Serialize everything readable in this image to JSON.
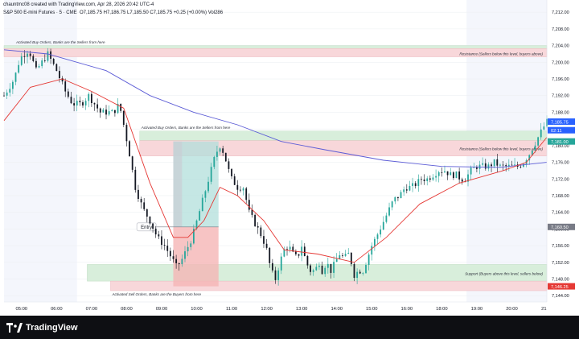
{
  "header": {
    "line1": "chauntmc08 created with TradingView.com, Apr 28, 2026 20:42 UTC-4",
    "symbol": "S&P 500 E-mini Futures · 5 · CME",
    "ohlc": "O7,185.75 H7,186.75 L7,185.50 C7,185.75 +0.25 (+0.00%) Vol286"
  },
  "footer": {
    "brand": "TradingView",
    "logo_icon": "tradingview-logo-icon"
  },
  "colors": {
    "up": "#26a69a",
    "down": "#131722",
    "ema_fast": "#e53935",
    "ema_slow": "#5c5cd6",
    "resistance_zone": "#f8d7da",
    "support_zone": "#d8eedb",
    "long_profit": "#b2dfdb",
    "stop_loss": "#f5b5b5",
    "price_label": "#2962ff",
    "red_label": "#e53935"
  },
  "chart_data": {
    "type": "candlestick",
    "x_ticks": [
      "05:00",
      "06:00",
      "07:00",
      "08:00",
      "09:00",
      "10:00",
      "11:00",
      "12:00",
      "13:00",
      "14:00",
      "15:00",
      "16:00",
      "18:00",
      "19:00",
      "20:00",
      "21"
    ],
    "y_ticks": [
      "7,212.00",
      "7,208.00",
      "7,204.00",
      "7,200.00",
      "7,196.00",
      "7,192.00",
      "7,188.00",
      "7,184.00",
      "7,180.00",
      "7,176.00",
      "7,172.00",
      "7,168.00",
      "7,164.00",
      "7,160.00",
      "7,156.00",
      "7,152.00",
      "7,148.00",
      "7,144.00"
    ],
    "ylim": [
      7142.5,
      7213
    ],
    "series_path": [
      [
        0,
        7192
      ],
      [
        7,
        7196
      ],
      [
        11,
        7201
      ],
      [
        17,
        7203
      ],
      [
        22,
        7198
      ],
      [
        26,
        7200
      ],
      [
        30,
        7202
      ],
      [
        36,
        7198
      ],
      [
        42,
        7193
      ],
      [
        47,
        7190
      ],
      [
        53,
        7190
      ],
      [
        58,
        7192
      ],
      [
        62,
        7190
      ],
      [
        66,
        7188
      ],
      [
        72,
        7188
      ],
      [
        75,
        7188
      ],
      [
        79,
        7190
      ],
      [
        82,
        7185
      ],
      [
        86,
        7178
      ],
      [
        90,
        7170
      ],
      [
        95,
        7165
      ],
      [
        100,
        7162
      ],
      [
        105,
        7158
      ],
      [
        110,
        7156
      ],
      [
        115,
        7153
      ],
      [
        118,
        7151
      ],
      [
        121,
        7152
      ],
      [
        125,
        7155
      ],
      [
        129,
        7158
      ],
      [
        133,
        7163
      ],
      [
        137,
        7168
      ],
      [
        141,
        7173
      ],
      [
        145,
        7178
      ],
      [
        148,
        7180
      ],
      [
        151,
        7178
      ],
      [
        153,
        7175
      ],
      [
        156,
        7172
      ],
      [
        160,
        7170
      ],
      [
        164,
        7170
      ],
      [
        168,
        7164
      ],
      [
        171,
        7162
      ],
      [
        174,
        7160
      ],
      [
        177,
        7158
      ],
      [
        180,
        7155
      ],
      [
        183,
        7150
      ],
      [
        186,
        7148
      ],
      [
        189,
        7152
      ],
      [
        192,
        7155
      ],
      [
        195,
        7156
      ],
      [
        198,
        7154
      ],
      [
        201,
        7153
      ],
      [
        204,
        7156
      ],
      [
        207,
        7152
      ],
      [
        210,
        7150
      ],
      [
        213,
        7150
      ],
      [
        216,
        7152
      ],
      [
        218,
        7150
      ],
      [
        221,
        7152
      ],
      [
        224,
        7150
      ],
      [
        227,
        7152
      ],
      [
        230,
        7154
      ],
      [
        233,
        7153
      ],
      [
        236,
        7154
      ],
      [
        238,
        7152
      ],
      [
        240,
        7149
      ],
      [
        243,
        7150
      ],
      [
        246,
        7150
      ],
      [
        249,
        7153
      ],
      [
        252,
        7156
      ],
      [
        255,
        7158
      ],
      [
        259,
        7161
      ],
      [
        263,
        7164
      ],
      [
        267,
        7167
      ],
      [
        271,
        7168
      ],
      [
        275,
        7170
      ],
      [
        279,
        7170
      ],
      [
        283,
        7171
      ],
      [
        286,
        7172
      ],
      [
        290,
        7172
      ],
      [
        294,
        7173
      ],
      [
        298,
        7174
      ],
      [
        302,
        7174
      ],
      [
        306,
        7173
      ],
      [
        310,
        7173
      ],
      [
        313,
        7172
      ],
      [
        316,
        7172
      ],
      [
        320,
        7174
      ],
      [
        324,
        7175
      ],
      [
        328,
        7175
      ],
      [
        332,
        7175
      ],
      [
        336,
        7176
      ],
      [
        340,
        7175
      ],
      [
        344,
        7175
      ],
      [
        348,
        7175
      ],
      [
        352,
        7175
      ],
      [
        356,
        7176
      ],
      [
        360,
        7178
      ],
      [
        363,
        7180
      ],
      [
        366,
        7182
      ],
      [
        369,
        7184
      ],
      [
        372,
        7185.75
      ]
    ],
    "ema_fast": [
      [
        0,
        7186
      ],
      [
        18,
        7194
      ],
      [
        40,
        7196
      ],
      [
        60,
        7193
      ],
      [
        82,
        7189
      ],
      [
        100,
        7171
      ],
      [
        116,
        7158
      ],
      [
        126,
        7158
      ],
      [
        137,
        7162
      ],
      [
        148,
        7170
      ],
      [
        160,
        7168
      ],
      [
        178,
        7162
      ],
      [
        192,
        7155
      ],
      [
        215,
        7154
      ],
      [
        240,
        7152
      ],
      [
        262,
        7158
      ],
      [
        285,
        7166
      ],
      [
        312,
        7171
      ],
      [
        342,
        7174
      ],
      [
        358,
        7176
      ],
      [
        372,
        7182
      ]
    ],
    "ema_slow": [
      [
        0,
        7203
      ],
      [
        30,
        7202
      ],
      [
        70,
        7198
      ],
      [
        100,
        7192
      ],
      [
        130,
        7188
      ],
      [
        160,
        7185
      ],
      [
        190,
        7181
      ],
      [
        220,
        7179
      ],
      [
        260,
        7176.5
      ],
      [
        300,
        7175
      ],
      [
        340,
        7174.8
      ],
      [
        372,
        7176
      ]
    ],
    "zones": [
      {
        "label": "Activated Buy Orders, Banks are the Sellers from here"
      },
      {
        "label": "Resistance  (Sellers below this level, buyers above)"
      },
      {
        "label": "Activated Buy Orders, Banks are the Sellers from here"
      },
      {
        "label": "Resistance  (Sellers below this level, buyers above)"
      },
      {
        "label": "Support  (Buyers above this level, sellers below)"
      },
      {
        "label": "Activated Sell Orders, Banks are the Buyers from here"
      }
    ],
    "entry_label": "Entry",
    "price_labels": {
      "current": "7,185.75",
      "countdown": "02:11",
      "target": "7,181.00",
      "entry": "7,160.50",
      "stop": "7,146.25"
    }
  }
}
